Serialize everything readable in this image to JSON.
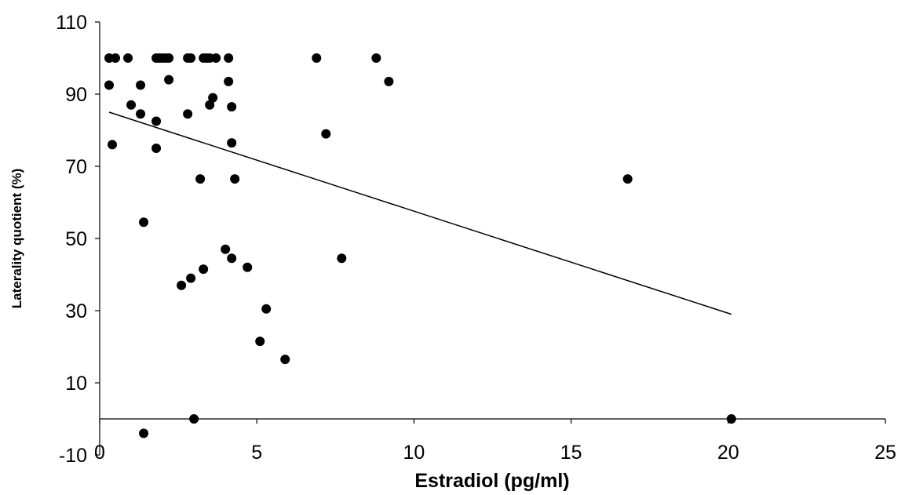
{
  "chart_data": {
    "type": "scatter",
    "title": "",
    "xlabel": "Estradiol (pg/ml)",
    "ylabel": "Laterality quotient (%)",
    "xlim": [
      0,
      25
    ],
    "ylim": [
      -10,
      110
    ],
    "x_ticks": [
      "0",
      "5",
      "10",
      "15",
      "20",
      "25"
    ],
    "y_ticks": [
      "-10",
      "10",
      "30",
      "50",
      "70",
      "90",
      "110"
    ],
    "grid": false,
    "legend": "none",
    "marker_color": "#000000",
    "points": [
      {
        "x": 0.3,
        "y": 100
      },
      {
        "x": 0.5,
        "y": 100
      },
      {
        "x": 0.9,
        "y": 100
      },
      {
        "x": 1.8,
        "y": 100
      },
      {
        "x": 1.9,
        "y": 100
      },
      {
        "x": 2.0,
        "y": 100
      },
      {
        "x": 2.1,
        "y": 100
      },
      {
        "x": 2.2,
        "y": 100
      },
      {
        "x": 2.8,
        "y": 100
      },
      {
        "x": 2.9,
        "y": 100
      },
      {
        "x": 3.3,
        "y": 100
      },
      {
        "x": 3.4,
        "y": 100
      },
      {
        "x": 3.5,
        "y": 100
      },
      {
        "x": 3.7,
        "y": 100
      },
      {
        "x": 4.1,
        "y": 100
      },
      {
        "x": 6.9,
        "y": 100
      },
      {
        "x": 8.8,
        "y": 100
      },
      {
        "x": 0.3,
        "y": 92.5
      },
      {
        "x": 1.3,
        "y": 92.5
      },
      {
        "x": 2.2,
        "y": 94
      },
      {
        "x": 4.1,
        "y": 93.5
      },
      {
        "x": 9.2,
        "y": 93.5
      },
      {
        "x": 1.0,
        "y": 87
      },
      {
        "x": 3.6,
        "y": 89
      },
      {
        "x": 3.5,
        "y": 87
      },
      {
        "x": 4.2,
        "y": 86.5
      },
      {
        "x": 1.3,
        "y": 84.5
      },
      {
        "x": 2.8,
        "y": 84.5
      },
      {
        "x": 1.8,
        "y": 82.5
      },
      {
        "x": 7.2,
        "y": 79
      },
      {
        "x": 4.2,
        "y": 76.5
      },
      {
        "x": 0.4,
        "y": 76
      },
      {
        "x": 1.8,
        "y": 75
      },
      {
        "x": 3.2,
        "y": 66.5
      },
      {
        "x": 4.3,
        "y": 66.5
      },
      {
        "x": 16.8,
        "y": 66.5
      },
      {
        "x": 1.4,
        "y": 54.5
      },
      {
        "x": 4.0,
        "y": 47
      },
      {
        "x": 4.2,
        "y": 44.5
      },
      {
        "x": 7.7,
        "y": 44.5
      },
      {
        "x": 3.3,
        "y": 41.5
      },
      {
        "x": 4.7,
        "y": 42
      },
      {
        "x": 2.9,
        "y": 39
      },
      {
        "x": 2.6,
        "y": 37
      },
      {
        "x": 5.3,
        "y": 30.5
      },
      {
        "x": 5.1,
        "y": 21.5
      },
      {
        "x": 5.9,
        "y": 16.5
      },
      {
        "x": 3.0,
        "y": 0
      },
      {
        "x": 20.1,
        "y": 0
      },
      {
        "x": 1.4,
        "y": -4
      }
    ],
    "trendline": {
      "x": [
        0.3,
        20.1
      ],
      "y": [
        85,
        29
      ]
    }
  }
}
